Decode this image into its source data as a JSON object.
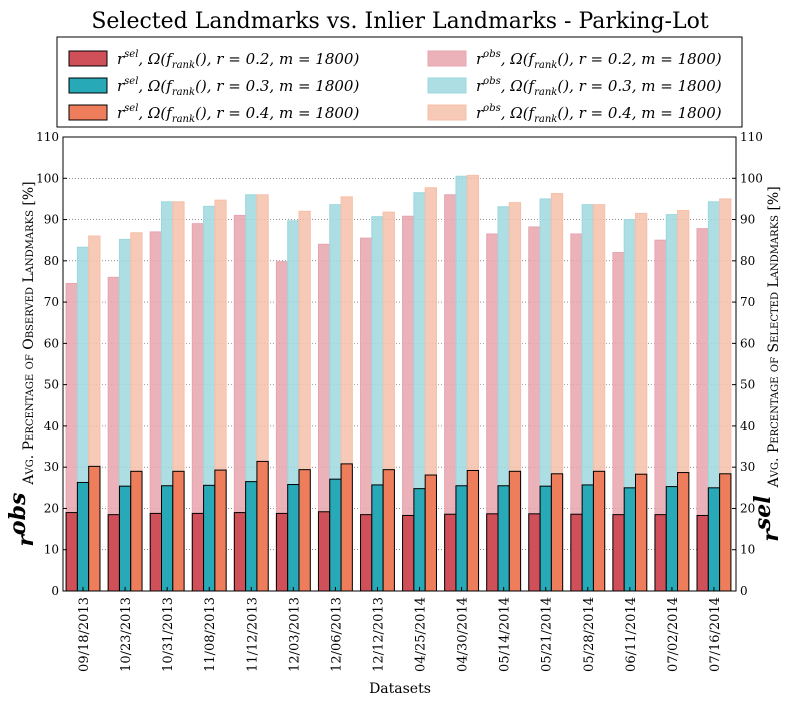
{
  "chart_data": {
    "type": "bar",
    "title": "Selected Landmarks vs. Inlier Landmarks - Parking-Lot",
    "xlabel": "Datasets",
    "ylabel_left": {
      "symbol": "r",
      "sup": "obs",
      "text": "Avg. Percentage of Observed Landmarks [%]"
    },
    "ylabel_right": {
      "symbol": "r",
      "sup": "sel",
      "text": "Avg. Percentage of Selected Landmarks [%]"
    },
    "ylim": [
      0,
      110
    ],
    "yticks": [
      0,
      10,
      20,
      30,
      40,
      50,
      60,
      70,
      80,
      90,
      100,
      110
    ],
    "grid": "horizontal-dotted",
    "categories": [
      "09/18/2013",
      "10/23/2013",
      "10/31/2013",
      "11/08/2013",
      "11/12/2013",
      "12/03/2013",
      "12/06/2013",
      "12/12/2013",
      "04/25/2014",
      "04/30/2014",
      "05/14/2014",
      "05/21/2014",
      "05/28/2014",
      "06/11/2014",
      "07/02/2014",
      "07/16/2014"
    ],
    "series": [
      {
        "name": "r^sel, Ω(f_rank(), r = 0.2, m = 1800)",
        "sym": "r",
        "sup": "sel",
        "params": "Ω(f",
        "sub": "rank",
        "tail": "(), r = 0.2, m = 1800)",
        "kind": "sel",
        "color": "#d0505a",
        "values": [
          19,
          18.5,
          18.8,
          18.8,
          19,
          18.8,
          19.2,
          18.5,
          18.3,
          18.6,
          18.7,
          18.7,
          18.6,
          18.5,
          18.5,
          18.3
        ]
      },
      {
        "name": "r^sel, Ω(f_rank(), r = 0.3, m = 1800)",
        "sym": "r",
        "sup": "sel",
        "params": "Ω(f",
        "sub": "rank",
        "tail": "(), r = 0.3, m = 1800)",
        "kind": "sel",
        "color": "#27a9b8",
        "values": [
          26.3,
          25.4,
          25.5,
          25.6,
          26.5,
          25.8,
          27.1,
          25.7,
          24.8,
          25.5,
          25.5,
          25.4,
          25.7,
          25.0,
          25.3,
          25.0
        ]
      },
      {
        "name": "r^sel, Ω(f_rank(), r = 0.4, m = 1800)",
        "sym": "r",
        "sup": "sel",
        "params": "Ω(f",
        "sub": "rank",
        "tail": "(), r = 0.4, m = 1800)",
        "kind": "sel",
        "color": "#ee7d5c",
        "values": [
          30.2,
          29.0,
          29.0,
          29.3,
          31.4,
          29.4,
          30.8,
          29.4,
          28.1,
          29.2,
          29.0,
          28.4,
          29.0,
          28.3,
          28.7,
          28.4
        ]
      },
      {
        "name": "r^obs, Ω(f_rank(), r = 0.2, m = 1800)",
        "sym": "r",
        "sup": "obs",
        "params": "Ω(f",
        "sub": "rank",
        "tail": "(), r = 0.2, m = 1800)",
        "kind": "obs",
        "color": "#e7a4ae",
        "values": [
          74.5,
          76.0,
          87.0,
          89.0,
          91.0,
          79.8,
          84.0,
          85.5,
          90.8,
          96.0,
          86.5,
          88.2,
          86.5,
          82.0,
          85.0,
          87.8
        ]
      },
      {
        "name": "r^obs, Ω(f_rank(), r = 0.3, m = 1800)",
        "sym": "r",
        "sup": "obs",
        "params": "Ω(f",
        "sub": "rank",
        "tail": "(), r = 0.3, m = 1800)",
        "kind": "obs",
        "color": "#9dd8de",
        "values": [
          83.3,
          85.2,
          94.3,
          93.2,
          96.0,
          89.7,
          93.6,
          90.7,
          96.5,
          100.5,
          93.1,
          95.0,
          93.6,
          90.0,
          91.2,
          94.3
        ]
      },
      {
        "name": "r^obs, Ω(f_rank(), r = 0.4, m = 1800)",
        "sym": "r",
        "sup": "obs",
        "params": "Ω(f",
        "sub": "rank",
        "tail": "(), r = 0.4, m = 1800)",
        "kind": "obs",
        "color": "#f6c0aa",
        "values": [
          86.0,
          86.8,
          94.3,
          94.7,
          96.0,
          92.0,
          95.5,
          91.8,
          97.7,
          100.7,
          94.1,
          96.3,
          93.6,
          91.5,
          92.2,
          95.0
        ]
      }
    ],
    "legend": {
      "placement": "top",
      "columns": 2,
      "order": [
        0,
        3,
        1,
        4,
        2,
        5
      ]
    }
  }
}
